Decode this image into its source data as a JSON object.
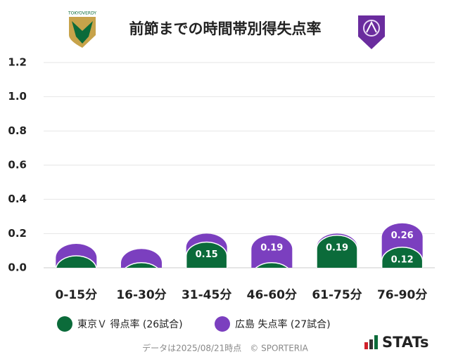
{
  "chart_data": {
    "type": "pill-bar",
    "title": "前節までの時間帯別得失点率",
    "home_logo_text": "TOKYOVERDY",
    "categories": [
      "0-15分",
      "16-30分",
      "31-45分",
      "46-60分",
      "61-75分",
      "76-90分"
    ],
    "ylim": [
      0,
      1.2
    ],
    "yticks": [
      {
        "value": 0,
        "label": "0.0"
      },
      0.2,
      0.4,
      0.6,
      0.8,
      {
        "value": 1,
        "label": "1.0"
      },
      1.2
    ],
    "grid": true,
    "series": [
      {
        "name": "広島 失点率 (27試合)",
        "color": "#7b3fbf",
        "values": [
          0.14,
          0.11,
          0.2,
          0.19,
          0.2,
          0.26
        ],
        "value_labels": [
          null,
          null,
          null,
          "0.19",
          null,
          "0.26"
        ]
      },
      {
        "name": "東京Ｖ 得点率 (26試合)",
        "color": "#0b6b3a",
        "values": [
          0.07,
          0.03,
          0.15,
          0.03,
          0.19,
          0.12
        ],
        "value_labels": [
          null,
          null,
          "0.15",
          null,
          "0.19",
          "0.12"
        ]
      }
    ],
    "legend_order": [
      1,
      0
    ],
    "footer": "データは2025/08/21時点　© SPORTERIA",
    "brand": "STATs"
  }
}
